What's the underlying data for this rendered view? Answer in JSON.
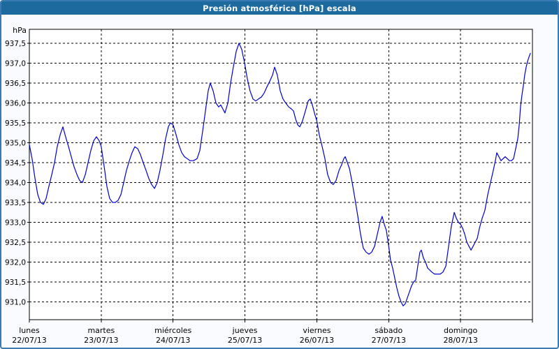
{
  "window": {
    "title": "Presión atmosférica [hPa] escala"
  },
  "colors": {
    "titlebar_bg": "#1d6a9e",
    "titlebar_text": "#ffffff",
    "window_border": "#3a79b4",
    "window_bg": "#fafbfe",
    "plot_bg": "#ffffff",
    "grid": "#000000",
    "line": "#0000cd"
  },
  "chart_data": {
    "type": "line",
    "title": "Presión atmosférica [hPa] escala",
    "ylabel": "hPa",
    "grid": "dashed",
    "legend": "none",
    "y_axis": {
      "min": 931.0,
      "max": 937.5,
      "tick_step": 0.5,
      "ticks": [
        {
          "v": 937.5,
          "label": "937,5"
        },
        {
          "v": 937.0,
          "label": "937,0"
        },
        {
          "v": 936.5,
          "label": "936,5"
        },
        {
          "v": 936.0,
          "label": "936,0"
        },
        {
          "v": 935.5,
          "label": "935,5"
        },
        {
          "v": 935.0,
          "label": "935,0"
        },
        {
          "v": 934.5,
          "label": "934,5"
        },
        {
          "v": 934.0,
          "label": "934,0"
        },
        {
          "v": 933.5,
          "label": "933,5"
        },
        {
          "v": 933.0,
          "label": "933,0"
        },
        {
          "v": 932.5,
          "label": "932,5"
        },
        {
          "v": 932.0,
          "label": "932,0"
        },
        {
          "v": 931.5,
          "label": "931,5"
        },
        {
          "v": 931.0,
          "label": "931,0"
        }
      ]
    },
    "x_axis": {
      "hours_total": 168,
      "hours_per_day": 24,
      "days": [
        {
          "name": "lunes",
          "date": "22/07/13"
        },
        {
          "name": "martes",
          "date": "23/07/13"
        },
        {
          "name": "miércoles",
          "date": "24/07/13"
        },
        {
          "name": "jueves",
          "date": "25/07/13"
        },
        {
          "name": "viernes",
          "date": "26/07/13"
        },
        {
          "name": "sábado",
          "date": "27/07/13"
        },
        {
          "name": "domingo",
          "date": "28/07/13"
        }
      ]
    },
    "series": [
      {
        "name": "Presión atmosférica",
        "color": "#0000cd",
        "points": [
          [
            0,
            934.95
          ],
          [
            0.9,
            934.6
          ],
          [
            1.9,
            934.1
          ],
          [
            2.8,
            933.7
          ],
          [
            3.7,
            933.5
          ],
          [
            4.7,
            933.45
          ],
          [
            5.6,
            933.6
          ],
          [
            6.5,
            933.9
          ],
          [
            7.5,
            934.2
          ],
          [
            8.4,
            934.5
          ],
          [
            9.3,
            934.9
          ],
          [
            10.3,
            935.2
          ],
          [
            11.2,
            935.4
          ],
          [
            12.1,
            935.15
          ],
          [
            13.1,
            934.9
          ],
          [
            14,
            934.65
          ],
          [
            14.9,
            934.4
          ],
          [
            15.9,
            934.2
          ],
          [
            16.8,
            934.05
          ],
          [
            17.7,
            934.0
          ],
          [
            18.7,
            934.2
          ],
          [
            19.6,
            934.5
          ],
          [
            20.5,
            934.8
          ],
          [
            21.5,
            935.05
          ],
          [
            22.4,
            935.15
          ],
          [
            23.3,
            935.05
          ],
          [
            24,
            934.9
          ],
          [
            25,
            934.4
          ],
          [
            25.9,
            933.9
          ],
          [
            26.8,
            933.6
          ],
          [
            27.8,
            933.5
          ],
          [
            28.7,
            933.5
          ],
          [
            29.6,
            933.55
          ],
          [
            30.6,
            933.7
          ],
          [
            31.5,
            934.0
          ],
          [
            32.4,
            934.3
          ],
          [
            33.4,
            934.55
          ],
          [
            34.3,
            934.75
          ],
          [
            35.2,
            934.9
          ],
          [
            36.2,
            934.85
          ],
          [
            37.1,
            934.7
          ],
          [
            38,
            934.5
          ],
          [
            39,
            934.3
          ],
          [
            39.9,
            934.1
          ],
          [
            40.8,
            933.95
          ],
          [
            41.8,
            933.85
          ],
          [
            42.7,
            934.0
          ],
          [
            43.6,
            934.3
          ],
          [
            44.6,
            934.7
          ],
          [
            45.5,
            935.1
          ],
          [
            46.4,
            935.4
          ],
          [
            47.1,
            935.5
          ],
          [
            48,
            935.45
          ],
          [
            49,
            935.2
          ],
          [
            49.9,
            934.95
          ],
          [
            50.9,
            934.75
          ],
          [
            51.8,
            934.65
          ],
          [
            52.7,
            934.6
          ],
          [
            53.7,
            934.55
          ],
          [
            54.8,
            934.55
          ],
          [
            56,
            934.6
          ],
          [
            56.9,
            934.8
          ],
          [
            57.9,
            935.3
          ],
          [
            58.8,
            935.8
          ],
          [
            59.7,
            936.3
          ],
          [
            60.4,
            936.5
          ],
          [
            61.4,
            936.3
          ],
          [
            62.3,
            936.0
          ],
          [
            63.2,
            935.9
          ],
          [
            63.9,
            935.95
          ],
          [
            64.6,
            935.85
          ],
          [
            65.3,
            935.75
          ],
          [
            66.3,
            936.0
          ],
          [
            67.2,
            936.5
          ],
          [
            68.1,
            936.9
          ],
          [
            69.1,
            937.3
          ],
          [
            70,
            937.5
          ],
          [
            70.9,
            937.35
          ],
          [
            71.9,
            937.0
          ],
          [
            72.8,
            936.6
          ],
          [
            73.7,
            936.3
          ],
          [
            74.7,
            936.1
          ],
          [
            75.6,
            936.05
          ],
          [
            76.5,
            936.1
          ],
          [
            77.5,
            936.15
          ],
          [
            78.4,
            936.25
          ],
          [
            79.3,
            936.4
          ],
          [
            80.3,
            936.55
          ],
          [
            81.2,
            936.7
          ],
          [
            81.9,
            936.9
          ],
          [
            82.8,
            936.7
          ],
          [
            83.8,
            936.3
          ],
          [
            84.7,
            936.1
          ],
          [
            85.6,
            936.0
          ],
          [
            86.6,
            935.9
          ],
          [
            87.5,
            935.85
          ],
          [
            88.2,
            935.8
          ],
          [
            88.9,
            935.6
          ],
          [
            89.6,
            935.45
          ],
          [
            90.3,
            935.4
          ],
          [
            91.2,
            935.55
          ],
          [
            92.2,
            935.8
          ],
          [
            93.1,
            936.05
          ],
          [
            93.8,
            936.1
          ],
          [
            94.5,
            935.95
          ],
          [
            95.2,
            935.75
          ],
          [
            96,
            935.55
          ],
          [
            96.8,
            935.2
          ],
          [
            97.8,
            934.9
          ],
          [
            98.7,
            934.6
          ],
          [
            99.6,
            934.2
          ],
          [
            100.6,
            934.0
          ],
          [
            101.5,
            933.95
          ],
          [
            102.4,
            934.05
          ],
          [
            103.4,
            934.3
          ],
          [
            104.3,
            934.45
          ],
          [
            105,
            934.6
          ],
          [
            105.5,
            934.65
          ],
          [
            106.2,
            934.5
          ],
          [
            106.9,
            934.35
          ],
          [
            107.8,
            934.0
          ],
          [
            108.7,
            933.6
          ],
          [
            109.7,
            933.15
          ],
          [
            110.6,
            932.7
          ],
          [
            111.5,
            932.35
          ],
          [
            112.5,
            932.25
          ],
          [
            113.4,
            932.2
          ],
          [
            114.3,
            932.25
          ],
          [
            115.3,
            932.4
          ],
          [
            116.2,
            932.7
          ],
          [
            117.1,
            933.0
          ],
          [
            117.8,
            933.15
          ],
          [
            118.5,
            932.95
          ],
          [
            119.2,
            932.8
          ],
          [
            120,
            932.4
          ],
          [
            120.6,
            932.05
          ],
          [
            121.3,
            931.85
          ],
          [
            122,
            931.6
          ],
          [
            122.7,
            931.35
          ],
          [
            123.4,
            931.15
          ],
          [
            124.1,
            931.0
          ],
          [
            124.8,
            930.9
          ],
          [
            125.5,
            930.95
          ],
          [
            126.2,
            931.1
          ],
          [
            126.9,
            931.25
          ],
          [
            127.6,
            931.4
          ],
          [
            128.3,
            931.5
          ],
          [
            129,
            931.55
          ],
          [
            129.7,
            931.9
          ],
          [
            130.4,
            932.25
          ],
          [
            130.9,
            932.3
          ],
          [
            131.6,
            932.1
          ],
          [
            132.3,
            932.0
          ],
          [
            133,
            931.85
          ],
          [
            133.7,
            931.8
          ],
          [
            134.4,
            931.75
          ],
          [
            135.3,
            931.7
          ],
          [
            136.3,
            931.7
          ],
          [
            137.2,
            931.7
          ],
          [
            138.1,
            931.75
          ],
          [
            139.1,
            931.9
          ],
          [
            140,
            932.4
          ],
          [
            140.9,
            932.9
          ],
          [
            141.9,
            933.25
          ],
          [
            142.6,
            933.1
          ],
          [
            143.3,
            933.0
          ],
          [
            144,
            932.95
          ],
          [
            144.7,
            932.85
          ],
          [
            145.4,
            932.7
          ],
          [
            146.1,
            932.5
          ],
          [
            146.8,
            932.4
          ],
          [
            147.5,
            932.3
          ],
          [
            148.2,
            932.4
          ],
          [
            148.9,
            932.5
          ],
          [
            149.6,
            932.6
          ],
          [
            150.3,
            932.85
          ],
          [
            151.2,
            933.1
          ],
          [
            152.1,
            933.3
          ],
          [
            153.1,
            933.7
          ],
          [
            154,
            934.0
          ],
          [
            154.9,
            934.3
          ],
          [
            155.6,
            934.55
          ],
          [
            156.1,
            934.75
          ],
          [
            156.8,
            934.65
          ],
          [
            157.5,
            934.55
          ],
          [
            158.2,
            934.6
          ],
          [
            158.9,
            934.65
          ],
          [
            159.6,
            934.6
          ],
          [
            160.3,
            934.55
          ],
          [
            161,
            934.55
          ],
          [
            161.7,
            934.6
          ],
          [
            162.4,
            934.85
          ],
          [
            163.1,
            935.1
          ],
          [
            163.6,
            935.45
          ],
          [
            164,
            935.9
          ],
          [
            164.5,
            936.2
          ],
          [
            165,
            936.45
          ],
          [
            165.4,
            936.7
          ],
          [
            165.9,
            936.9
          ],
          [
            166.4,
            937.05
          ],
          [
            166.8,
            937.15
          ],
          [
            167.3,
            937.25
          ]
        ]
      }
    ]
  }
}
